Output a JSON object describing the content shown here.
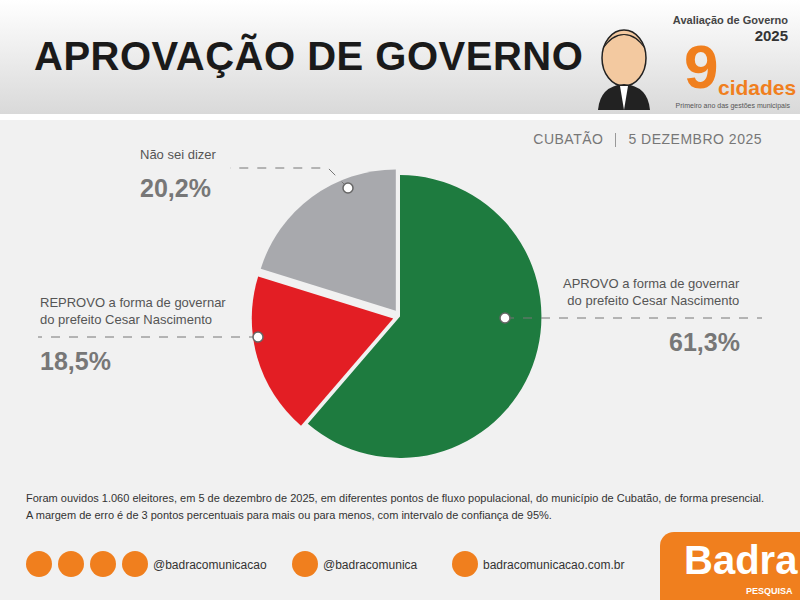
{
  "header": {
    "title": "APROVAÇÃO DE GOVERNO",
    "badge": {
      "line1": "Avaliação de Governo",
      "year": "2025",
      "number": "9",
      "word": "cidades",
      "subtitle": "Primeiro ano das gestões municipais"
    }
  },
  "place": "CUBATÃO",
  "date": "5 DEZEMBRO 2025",
  "chart_data": {
    "type": "pie",
    "categories": [
      "APROVO a forma de governar do prefeito Cesar Nascimento",
      "REPROVO a forma de governar do prefeito Cesar Nascimento",
      "Não sei dizer"
    ],
    "values": [
      61.3,
      18.5,
      20.2
    ],
    "value_labels": [
      "61,3%",
      "18,5%",
      "20,2%"
    ],
    "colors": [
      "#1e7b3f",
      "#e31e24",
      "#a8a9ad"
    ],
    "data_labels": true
  },
  "footnote": [
    "Foram ouvidos 1.060 eleitores, em 5 de dezembro de 2025, em diferentes pontos de fluxo populacional, do município de Cubatão, de forma presencial.",
    "A margem de erro é de 3 pontos percentuais para mais ou para menos, com intervalo de confiança de 95%."
  ],
  "footer": {
    "handles": [
      "@badracomunicacao",
      "@badracomunica",
      "badracomunicacao.com.br"
    ],
    "brand": "Badra",
    "brand_sub": "PESQUISA"
  }
}
